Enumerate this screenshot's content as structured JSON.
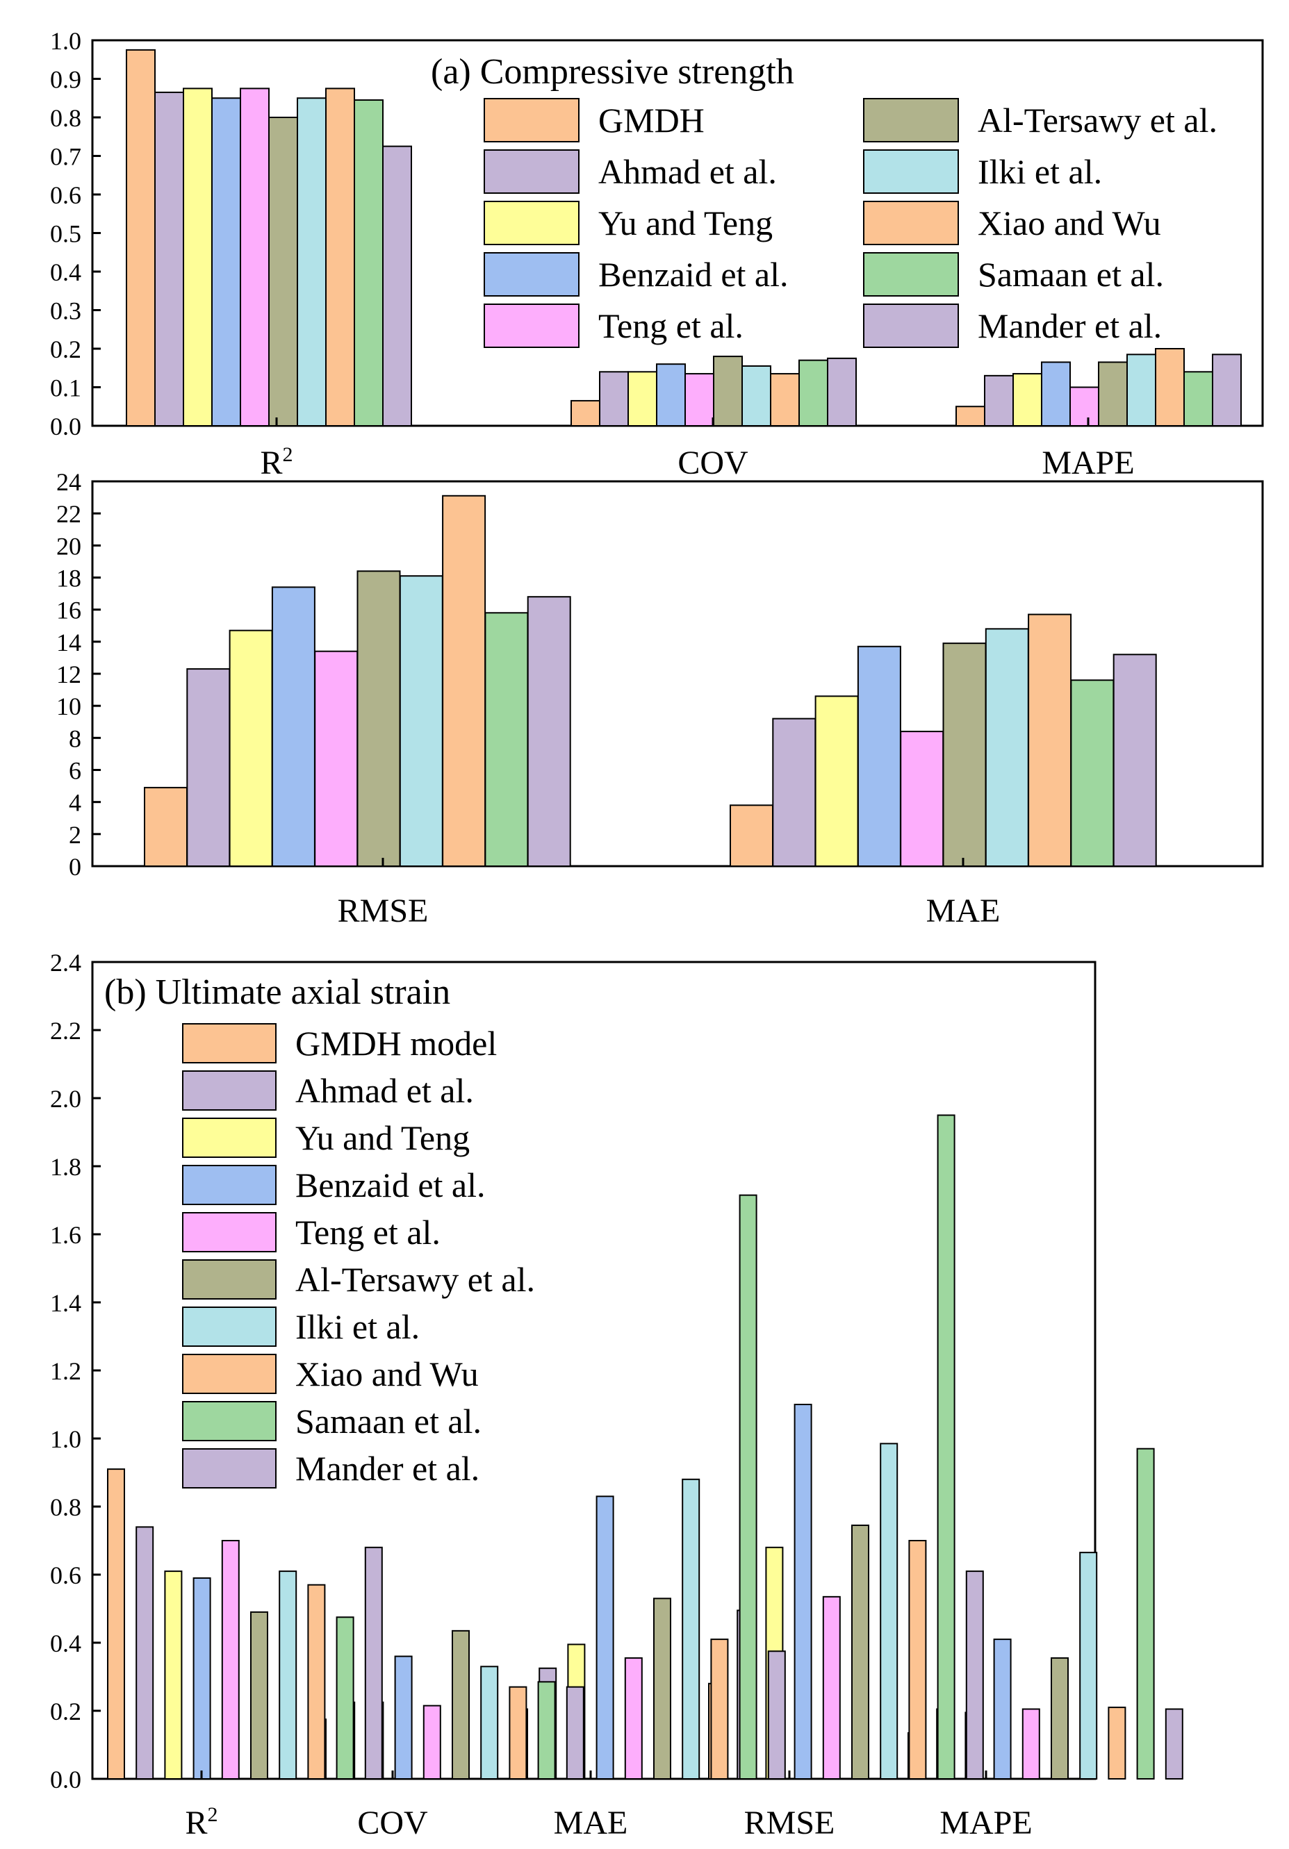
{
  "colors": {
    "GMDH": "#fcc392",
    "Ahmad": "#c3b4d6",
    "YuTeng": "#fefe98",
    "Benzaid": "#9ebef1",
    "Teng": "#fdaefc",
    "AlTersawy": "#b0b38c",
    "Ilki": "#b2e2e8",
    "XiaoWu": "#fcc392",
    "Samaan": "#9ed79f",
    "Mander": "#c3b4d6"
  },
  "chart_data": [
    {
      "type": "bar",
      "title": "(a) Compressive strength",
      "categories": [
        "R 2",
        "COV",
        "MAPE"
      ],
      "ylim": [
        0,
        1.0
      ],
      "yticks": [
        "0.0",
        "0.1",
        "0.2",
        "0.3",
        "0.4",
        "0.5",
        "0.6",
        "0.7",
        "0.8",
        "0.9",
        "1.0"
      ],
      "series": [
        {
          "name": "GMDH",
          "color_key": "GMDH",
          "values": [
            0.975,
            0.065,
            0.05
          ]
        },
        {
          "name": "Ahmad et al.",
          "color_key": "Ahmad",
          "values": [
            0.865,
            0.14,
            0.13
          ]
        },
        {
          "name": "Yu and Teng",
          "color_key": "YuTeng",
          "values": [
            0.875,
            0.14,
            0.135
          ]
        },
        {
          "name": "Benzaid et al.",
          "color_key": "Benzaid",
          "values": [
            0.85,
            0.16,
            0.165
          ]
        },
        {
          "name": "Teng et al.",
          "color_key": "Teng",
          "values": [
            0.875,
            0.135,
            0.1
          ]
        },
        {
          "name": "Al-Tersawy et al.",
          "color_key": "AlTersawy",
          "values": [
            0.8,
            0.18,
            0.165
          ]
        },
        {
          "name": "Ilki et al.",
          "color_key": "Ilki",
          "values": [
            0.85,
            0.155,
            0.185
          ]
        },
        {
          "name": "Xiao and Wu",
          "color_key": "XiaoWu",
          "values": [
            0.875,
            0.135,
            0.2
          ]
        },
        {
          "name": "Samaan et al.",
          "color_key": "Samaan",
          "values": [
            0.845,
            0.17,
            0.14
          ]
        },
        {
          "name": "Mander et al.",
          "color_key": "Mander",
          "values": [
            0.725,
            0.175,
            0.185
          ]
        }
      ]
    },
    {
      "type": "bar",
      "title": "",
      "categories": [
        "RMSE",
        "MAE"
      ],
      "ylim": [
        0,
        24
      ],
      "yticks": [
        "0",
        "2",
        "4",
        "6",
        "8",
        "10",
        "12",
        "14",
        "16",
        "18",
        "20",
        "22",
        "24"
      ],
      "series": [
        {
          "name": "GMDH",
          "color_key": "GMDH",
          "values": [
            4.9,
            3.8
          ]
        },
        {
          "name": "Ahmad et al.",
          "color_key": "Ahmad",
          "values": [
            12.3,
            9.2
          ]
        },
        {
          "name": "Yu and Teng",
          "color_key": "YuTeng",
          "values": [
            14.7,
            10.6
          ]
        },
        {
          "name": "Benzaid et al.",
          "color_key": "Benzaid",
          "values": [
            17.4,
            13.7
          ]
        },
        {
          "name": "Teng et al.",
          "color_key": "Teng",
          "values": [
            13.4,
            8.4
          ]
        },
        {
          "name": "Al-Tersawy et al.",
          "color_key": "AlTersawy",
          "values": [
            18.4,
            13.9
          ]
        },
        {
          "name": "Ilki et al.",
          "color_key": "Ilki",
          "values": [
            18.1,
            14.8
          ]
        },
        {
          "name": "Xiao and Wu",
          "color_key": "XiaoWu",
          "values": [
            23.1,
            15.7
          ]
        },
        {
          "name": "Samaan et al.",
          "color_key": "Samaan",
          "values": [
            15.8,
            11.6
          ]
        },
        {
          "name": "Mander et al.",
          "color_key": "Mander",
          "values": [
            16.8,
            13.2
          ]
        }
      ]
    },
    {
      "type": "bar",
      "title": "(b) Ultimate axial strain",
      "categories": [
        "R 2",
        "COV",
        "MAE",
        "RMSE",
        "MAPE"
      ],
      "ylim": [
        0,
        2.4
      ],
      "yticks": [
        "0.0",
        "0.2",
        "0.4",
        "0.6",
        "0.8",
        "1.0",
        "1.2",
        "1.4",
        "1.6",
        "1.8",
        "2.0",
        "2.2",
        "2.4"
      ],
      "series": [
        {
          "name": "GMDH model",
          "color_key": "GMDH",
          "values": [
            0.91,
            0.175,
            0.205,
            0.28,
            0.135
          ]
        },
        {
          "name": "Ahmad et al.",
          "color_key": "Ahmad",
          "values": [
            0.74,
            0.225,
            0.325,
            0.495,
            0.205
          ]
        },
        {
          "name": "Yu and Teng",
          "color_key": "YuTeng",
          "values": [
            0.61,
            0.225,
            0.395,
            0.68,
            0.195
          ]
        },
        {
          "name": "Benzaid et al.",
          "color_key": "Benzaid",
          "values": [
            0.59,
            0.36,
            0.83,
            1.1,
            0.41
          ]
        },
        {
          "name": "Teng et al.",
          "color_key": "Teng",
          "values": [
            0.7,
            0.215,
            0.355,
            0.535,
            0.205
          ]
        },
        {
          "name": "Al-Tersawy et al.",
          "color_key": "AlTersawy",
          "values": [
            0.49,
            0.435,
            0.53,
            0.745,
            0.355
          ]
        },
        {
          "name": "Ilki et al.",
          "color_key": "Ilki",
          "values": [
            0.61,
            0.33,
            0.88,
            0.985,
            0.665
          ]
        },
        {
          "name": "Xiao and Wu",
          "color_key": "XiaoWu",
          "values": [
            0.57,
            0.27,
            0.41,
            0.7,
            0.21
          ]
        },
        {
          "name": "Samaan et al.",
          "color_key": "Samaan",
          "values": [
            0.475,
            0.285,
            1.715,
            1.95,
            0.97
          ]
        },
        {
          "name": "Mander et al.",
          "color_key": "Mander",
          "values": [
            0.68,
            0.27,
            0.375,
            0.61,
            0.205
          ]
        }
      ]
    }
  ]
}
